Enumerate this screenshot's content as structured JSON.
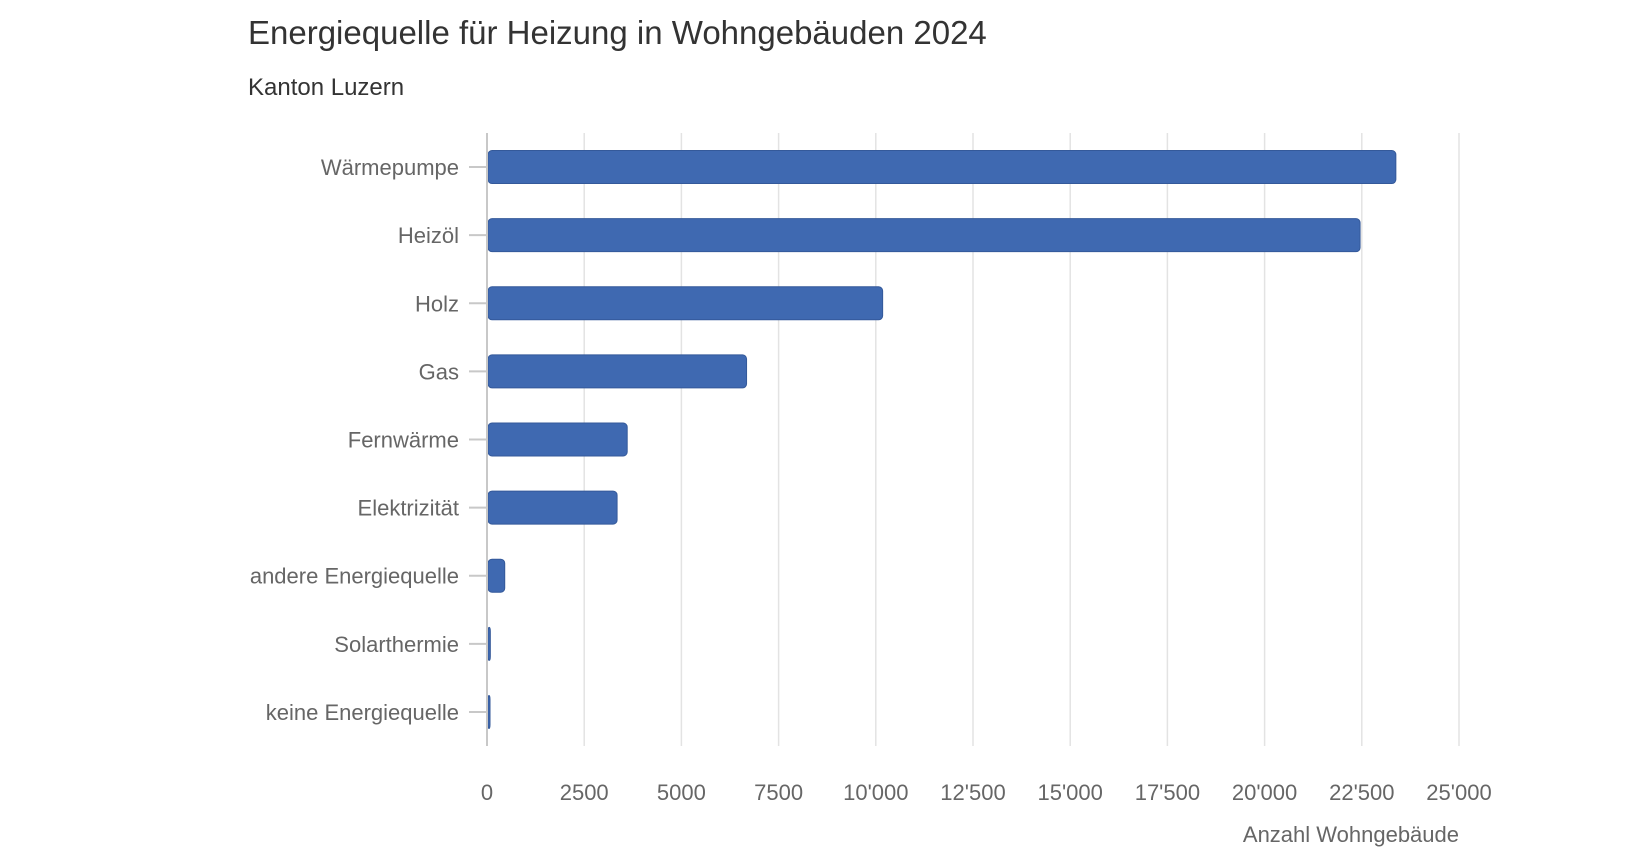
{
  "chart_data": {
    "type": "bar",
    "orientation": "horizontal",
    "title": "Energiequelle für Heizung in Wohngebäuden 2024",
    "subtitle": "Kanton Luzern",
    "xlabel": "Anzahl Wohngebäude",
    "ylabel": "",
    "categories": [
      "Wärmepumpe",
      "Heizöl",
      "Holz",
      "Gas",
      "Fernwärme",
      "Elektrizität",
      "andere Energiequelle",
      "Solarthermie",
      "keine Energiequelle"
    ],
    "values": [
      23350,
      22430,
      10150,
      6650,
      3580,
      3320,
      430,
      60,
      50
    ],
    "xlim": [
      0,
      25000
    ],
    "tick_values": [
      0,
      2500,
      5000,
      7500,
      10000,
      12500,
      15000,
      17500,
      20000,
      22500,
      25000
    ],
    "tick_labels": [
      "0",
      "2500",
      "5000",
      "7500",
      "10'000",
      "12'500",
      "15'000",
      "17'500",
      "20'000",
      "22'500",
      "25'000"
    ],
    "grid": true,
    "legend": "none",
    "colors": {
      "bar": "#3f69b1",
      "bar_stroke": "#34599a",
      "grid": "#e3e3e3",
      "axis": "#c8c8c8",
      "label": "#666666",
      "title": "#333333"
    }
  }
}
